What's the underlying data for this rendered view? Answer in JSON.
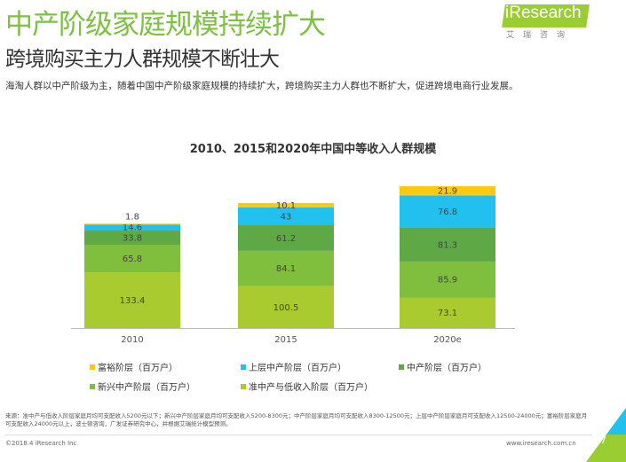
{
  "header": {
    "title": "中产阶级家庭规模持续扩大",
    "subtitle": "跨境购买主力人群规模不断壮大",
    "description": "海淘人群以中产阶级为主，随着中国中产阶级家庭规模的持续扩大，跨境购买主力人群也不断扩大，促进跨境电商行业发展。"
  },
  "logo": {
    "text": "iResearch",
    "subtext": "艾瑞咨询"
  },
  "chart_data": {
    "type": "bar",
    "stacked": true,
    "title": "2010、2015和2020年中国中等收入人群规模",
    "categories": [
      "2010",
      "2015",
      "2020e"
    ],
    "series": [
      {
        "name": "准中产与低收入阶层（百万户）",
        "color": "#A9CB2F",
        "values": [
          133.4,
          100.5,
          73.1
        ]
      },
      {
        "name": "新兴中产阶层（百万户）",
        "color": "#80BE3E",
        "values": [
          65.8,
          84.1,
          85.9
        ]
      },
      {
        "name": "中产阶层（百万户）",
        "color": "#5EA946",
        "values": [
          33.8,
          61.2,
          81.3
        ]
      },
      {
        "name": "上层中产阶层（百万户）",
        "color": "#21C0EE",
        "values": [
          14.6,
          43,
          76.8
        ]
      },
      {
        "name": "富裕阶层（百万户）",
        "color": "#FFC90E",
        "values": [
          1.8,
          10.1,
          21.9
        ]
      }
    ],
    "legend_order": [
      4,
      3,
      2,
      1,
      0
    ],
    "ylim": [
      0,
      340
    ],
    "grid": false,
    "legend_position": "bottom"
  },
  "footer": {
    "source": "来源：准中产与低收入阶层家庭月均可支配收入5200元以下；新兴中产阶层家庭月均可支配收入5200-8300元；中产阶层家庭月均可支配收入8300-12500元；上层中产阶层家庭月可支配收入12500-24000元；富裕阶层家庭月可支配收入24000元以上，波士顿咨询，广发证券研究中心，并根据艾瑞统计模型预测。",
    "copyright": "©2018.4 iResearch Inc",
    "url": "www.iresearch.com.cn",
    "page": "7"
  }
}
